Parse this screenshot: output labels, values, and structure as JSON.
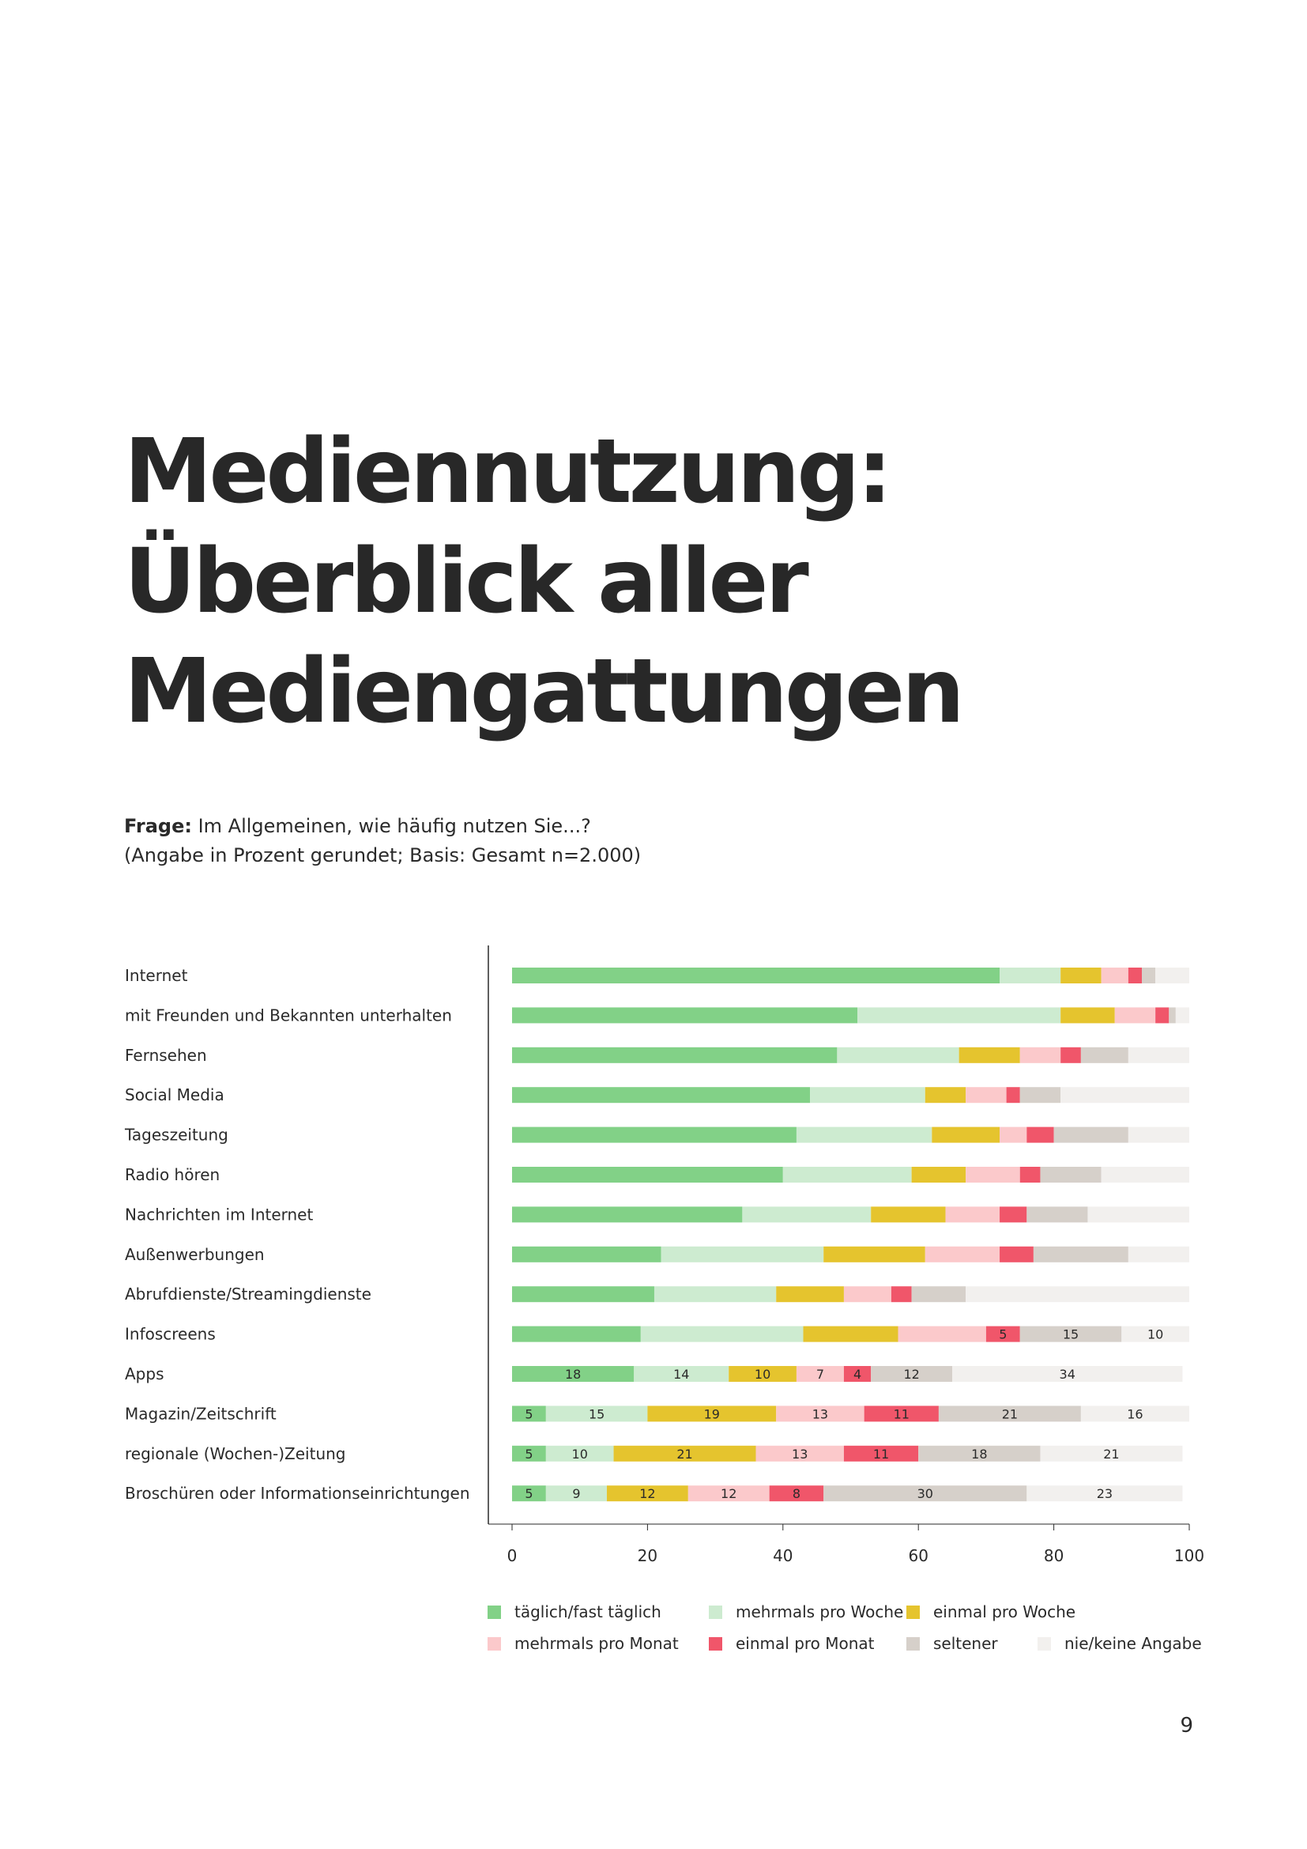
{
  "page": {
    "title_lines": [
      "Mediennutzung:",
      "Überblick aller",
      "Mediengattungen"
    ],
    "question_label": "Frage:",
    "question_text": " Im Allgemeinen, wie häufig nutzen Sie...?",
    "basis": "(Angabe in Prozent gerundet; Basis: Gesamt n=2.000)",
    "page_number": "9"
  },
  "chart_data": {
    "type": "bar",
    "orientation": "horizontal",
    "stacked": true,
    "xlim": [
      0,
      100
    ],
    "xticks": [
      0,
      20,
      40,
      60,
      80,
      100
    ],
    "categories": [
      "Internet",
      "mit Freunden und Bekannten unterhalten",
      "Fernsehen",
      "Social Media",
      "Tageszeitung",
      "Radio hören",
      "Nachrichten im Internet",
      "Außenwerbungen",
      "Abrufdienste/Streamingdienste",
      "Infoscreens",
      "Apps",
      "Magazin/Zeitschrift",
      "regionale (Wochen-)Zeitung",
      "Broschüren oder Informationseinrichtungen"
    ],
    "series": [
      {
        "name": "täglich/fast täglich",
        "color": "#82d187",
        "values": [
          72,
          51,
          48,
          44,
          42,
          40,
          34,
          22,
          21,
          19,
          18,
          5,
          5,
          5
        ]
      },
      {
        "name": "mehrmals pro Woche",
        "color": "#cdebd0",
        "values": [
          9,
          30,
          18,
          17,
          20,
          19,
          19,
          24,
          18,
          24,
          14,
          15,
          10,
          9
        ]
      },
      {
        "name": "einmal pro Woche",
        "color": "#e5c42e",
        "values": [
          6,
          8,
          9,
          6,
          10,
          8,
          11,
          15,
          10,
          14,
          10,
          19,
          21,
          12
        ]
      },
      {
        "name": "mehrmals pro Monat",
        "color": "#fbc9cb",
        "values": [
          4,
          6,
          6,
          6,
          4,
          8,
          8,
          11,
          7,
          13,
          7,
          13,
          13,
          12
        ]
      },
      {
        "name": "einmal pro Monat",
        "color": "#f0566a",
        "values": [
          2,
          2,
          3,
          2,
          4,
          3,
          4,
          5,
          3,
          5,
          4,
          11,
          11,
          8
        ]
      },
      {
        "name": "seltener",
        "color": "#d6d0ca",
        "values": [
          2,
          1,
          7,
          6,
          11,
          9,
          9,
          14,
          8,
          15,
          12,
          21,
          18,
          30
        ]
      },
      {
        "name": "nie/keine Angabe",
        "color": "#f2f0ee",
        "values": [
          5,
          2,
          9,
          19,
          9,
          13,
          15,
          9,
          33,
          10,
          34,
          16,
          21,
          23
        ]
      }
    ],
    "data_labels": [
      {
        "category": "Infoscreens",
        "labels": [
          null,
          null,
          null,
          null,
          "5",
          "15",
          "10"
        ]
      },
      {
        "category": "Apps",
        "labels": [
          "18",
          "14",
          "10",
          "7",
          "4",
          "12",
          "34"
        ]
      },
      {
        "category": "Magazin/Zeitschrift",
        "labels": [
          "5",
          "15",
          "19",
          "13",
          "11",
          "21",
          "16"
        ]
      },
      {
        "category": "regionale (Wochen-)Zeitung",
        "labels": [
          "5",
          "10",
          "21",
          "13",
          "11",
          "18",
          "21"
        ]
      },
      {
        "category": "Broschüren oder Informationseinrichtungen",
        "labels": [
          "5",
          "9",
          "12",
          "12",
          "8",
          "30",
          "23"
        ]
      }
    ],
    "legend_position": "bottom",
    "grid": false
  }
}
